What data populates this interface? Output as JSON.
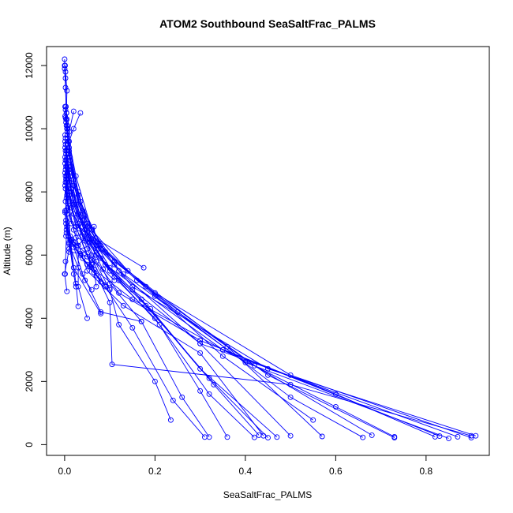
{
  "chart_data": {
    "type": "line",
    "title": "ATOM2 Southbound SeaSaltFrac_PALMS",
    "xlabel": "SeaSaltFrac_PALMS",
    "ylabel": "Altitude (m)",
    "xlim": [
      -0.04,
      0.94
    ],
    "ylim": [
      -340,
      12600
    ],
    "x_ticks": [
      0.0,
      0.2,
      0.4,
      0.6,
      0.8
    ],
    "x_tick_labels": [
      "0.0",
      "0.2",
      "0.4",
      "0.6",
      "0.8"
    ],
    "y_ticks": [
      0,
      2000,
      4000,
      6000,
      8000,
      10000,
      12000
    ],
    "y_tick_labels": [
      "0",
      "2000",
      "4000",
      "6000",
      "8000",
      "10000",
      "12000"
    ],
    "grid": false,
    "legend": "none",
    "series_color": "#0000ff",
    "marker": "open-circle",
    "profiles": [
      [
        [
          0.0,
          12200
        ],
        [
          0.0,
          12000
        ],
        [
          0.002,
          11800
        ],
        [
          0.005,
          11200
        ],
        [
          0.004,
          10500
        ],
        [
          0.006,
          10100
        ],
        [
          0.01,
          9400
        ],
        [
          0.02,
          8200
        ],
        [
          0.05,
          6900
        ],
        [
          0.12,
          5500
        ],
        [
          0.3,
          3200
        ],
        [
          0.87,
          250
        ]
      ],
      [
        [
          0.001,
          12000
        ],
        [
          0.002,
          11600
        ],
        [
          0.003,
          10700
        ],
        [
          0.005,
          10300
        ],
        [
          0.008,
          9600
        ],
        [
          0.03,
          8000
        ],
        [
          0.06,
          6500
        ],
        [
          0.15,
          5000
        ],
        [
          0.45,
          2400
        ],
        [
          0.91,
          280
        ]
      ],
      [
        [
          0.0,
          11900
        ],
        [
          0.002,
          11300
        ],
        [
          0.004,
          10500
        ],
        [
          0.007,
          10000
        ],
        [
          0.01,
          9200
        ],
        [
          0.03,
          7600
        ],
        [
          0.08,
          6200
        ],
        [
          0.2,
          4800
        ],
        [
          0.5,
          2200
        ],
        [
          0.9,
          220
        ]
      ],
      [
        [
          0.001,
          10700
        ],
        [
          0.003,
          10300
        ],
        [
          0.006,
          9800
        ],
        [
          0.015,
          8600
        ],
        [
          0.04,
          7100
        ],
        [
          0.1,
          5600
        ],
        [
          0.35,
          3000
        ],
        [
          0.83,
          270
        ]
      ],
      [
        [
          0.002,
          10600
        ],
        [
          0.004,
          10100
        ],
        [
          0.008,
          9500
        ],
        [
          0.02,
          8400
        ],
        [
          0.05,
          6700
        ],
        [
          0.13,
          5400
        ],
        [
          0.4,
          2600
        ],
        [
          0.85,
          200
        ]
      ],
      [
        [
          0.001,
          10400
        ],
        [
          0.005,
          10000
        ],
        [
          0.01,
          9300
        ],
        [
          0.03,
          7900
        ],
        [
          0.07,
          6400
        ],
        [
          0.16,
          5200
        ],
        [
          0.45,
          2200
        ],
        [
          0.73,
          220
        ]
      ],
      [
        [
          0.002,
          10350
        ],
        [
          0.006,
          9900
        ],
        [
          0.012,
          9000
        ],
        [
          0.04,
          7400
        ],
        [
          0.09,
          6100
        ],
        [
          0.2,
          4700
        ],
        [
          0.42,
          2500
        ],
        [
          0.68,
          300
        ]
      ],
      [
        [
          0.003,
          10200
        ],
        [
          0.007,
          9700
        ],
        [
          0.015,
          8800
        ],
        [
          0.05,
          7000
        ],
        [
          0.11,
          5800
        ],
        [
          0.25,
          4200
        ],
        [
          0.5,
          1500
        ],
        [
          0.66,
          230
        ]
      ],
      [
        [
          0.035,
          10500
        ],
        [
          0.02,
          10000
        ],
        [
          0.01,
          9600
        ],
        [
          0.025,
          8500
        ],
        [
          0.06,
          6800
        ],
        [
          0.14,
          5500
        ],
        [
          0.36,
          3100
        ],
        [
          0.57,
          260
        ]
      ],
      [
        [
          0.02,
          10550
        ],
        [
          0.01,
          9900
        ],
        [
          0.012,
          9100
        ],
        [
          0.035,
          7700
        ],
        [
          0.08,
          6300
        ],
        [
          0.18,
          5000
        ],
        [
          0.35,
          2800
        ],
        [
          0.55,
          780
        ]
      ],
      [
        [
          0.001,
          9800
        ],
        [
          0.004,
          9300
        ],
        [
          0.01,
          8700
        ],
        [
          0.03,
          7300
        ],
        [
          0.07,
          6000
        ],
        [
          0.15,
          4900
        ],
        [
          0.3,
          3200
        ],
        [
          0.5,
          280
        ]
      ],
      [
        [
          0.002,
          9700
        ],
        [
          0.005,
          9100
        ],
        [
          0.012,
          8500
        ],
        [
          0.035,
          7200
        ],
        [
          0.08,
          5900
        ],
        [
          0.17,
          4600
        ],
        [
          0.3,
          2400
        ],
        [
          0.47,
          240
        ]
      ],
      [
        [
          0.001,
          9600
        ],
        [
          0.004,
          9000
        ],
        [
          0.01,
          8300
        ],
        [
          0.04,
          6900
        ],
        [
          0.09,
          5700
        ],
        [
          0.18,
          4400
        ],
        [
          0.32,
          2100
        ],
        [
          0.45,
          220
        ]
      ],
      [
        [
          0.002,
          9500
        ],
        [
          0.006,
          8900
        ],
        [
          0.015,
          8100
        ],
        [
          0.045,
          6800
        ],
        [
          0.1,
          5500
        ],
        [
          0.19,
          4300
        ],
        [
          0.33,
          1900
        ],
        [
          0.43,
          300
        ]
      ],
      [
        [
          0.001,
          9400
        ],
        [
          0.005,
          8800
        ],
        [
          0.014,
          8000
        ],
        [
          0.04,
          6600
        ],
        [
          0.11,
          5300
        ],
        [
          0.2,
          4000
        ],
        [
          0.32,
          1600
        ],
        [
          0.42,
          230
        ]
      ],
      [
        [
          0.002,
          9300
        ],
        [
          0.007,
          8700
        ],
        [
          0.018,
          7800
        ],
        [
          0.05,
          6500
        ],
        [
          0.12,
          5200
        ],
        [
          0.21,
          3800
        ],
        [
          0.3,
          1700
        ],
        [
          0.36,
          240
        ]
      ],
      [
        [
          0.003,
          9200
        ],
        [
          0.006,
          8600
        ],
        [
          0.02,
          7600
        ],
        [
          0.055,
          6400
        ],
        [
          0.1,
          5100
        ],
        [
          0.17,
          3900
        ],
        [
          0.26,
          1500
        ],
        [
          0.32,
          240
        ]
      ],
      [
        [
          0.001,
          9100
        ],
        [
          0.004,
          8500
        ],
        [
          0.015,
          7500
        ],
        [
          0.05,
          6200
        ],
        [
          0.09,
          5000
        ],
        [
          0.15,
          3700
        ],
        [
          0.24,
          1400
        ],
        [
          0.31,
          240
        ]
      ],
      [
        [
          0.002,
          9000
        ],
        [
          0.005,
          8400
        ],
        [
          0.02,
          7300
        ],
        [
          0.06,
          6000
        ],
        [
          0.1,
          4900
        ],
        [
          0.12,
          3800
        ],
        [
          0.2,
          2000
        ],
        [
          0.235,
          780
        ]
      ],
      [
        [
          0.001,
          8900
        ],
        [
          0.004,
          8300
        ],
        [
          0.01,
          7900
        ],
        [
          0.03,
          6700
        ],
        [
          0.06,
          5700
        ],
        [
          0.1,
          4500
        ],
        [
          0.105,
          2540
        ],
        [
          0.5,
          1900
        ],
        [
          0.9,
          280
        ]
      ],
      [
        [
          0.003,
          8800
        ],
        [
          0.008,
          8100
        ],
        [
          0.03,
          7000
        ],
        [
          0.07,
          5800
        ],
        [
          0.12,
          4800
        ],
        [
          0.3,
          3300
        ],
        [
          0.6,
          1600
        ],
        [
          0.82,
          250
        ]
      ],
      [
        [
          0.002,
          8700
        ],
        [
          0.006,
          8000
        ],
        [
          0.025,
          6900
        ],
        [
          0.06,
          5600
        ],
        [
          0.15,
          4600
        ],
        [
          0.35,
          3000
        ],
        [
          0.6,
          1200
        ],
        [
          0.73,
          250
        ]
      ],
      [
        [
          0.001,
          8600
        ],
        [
          0.005,
          7900
        ],
        [
          0.02,
          6800
        ],
        [
          0.05,
          5500
        ],
        [
          0.13,
          4400
        ],
        [
          0.3,
          2900
        ],
        [
          0.44,
          280
        ]
      ],
      [
        [
          0.002,
          8500
        ],
        [
          0.004,
          7800
        ],
        [
          0.015,
          7000
        ],
        [
          0.175,
          5600
        ]
      ],
      [
        [
          0.003,
          8400
        ],
        [
          0.008,
          7700
        ],
        [
          0.012,
          6600
        ],
        [
          0.04,
          5400
        ],
        [
          0.08,
          4200
        ],
        [
          0.17,
          3900
        ]
      ],
      [
        [
          0.002,
          8300
        ],
        [
          0.007,
          7500
        ],
        [
          0.03,
          6300
        ],
        [
          0.03,
          5000
        ],
        [
          0.05,
          4000
        ]
      ],
      [
        [
          0.001,
          8200
        ],
        [
          0.004,
          7400
        ],
        [
          0.008,
          6600
        ],
        [
          0.02,
          5600
        ],
        [
          0.08,
          4150
        ]
      ],
      [
        [
          0.002,
          8100
        ],
        [
          0.005,
          7300
        ],
        [
          0.012,
          6500
        ],
        [
          0.025,
          5100
        ],
        [
          0.03,
          4380
        ]
      ],
      [
        [
          0.001,
          7400
        ],
        [
          0.003,
          7100
        ],
        [
          0.01,
          6400
        ],
        [
          0.02,
          5400
        ],
        [
          0.025,
          5000
        ]
      ],
      [
        [
          0.002,
          7700
        ],
        [
          0.01,
          6200
        ],
        [
          0.0,
          5400
        ],
        [
          0.005,
          4850
        ]
      ],
      [
        [
          0.001,
          7350
        ],
        [
          0.004,
          6700
        ],
        [
          0.002,
          5800
        ],
        [
          0.001,
          5400
        ]
      ],
      [
        [
          0.003,
          7000
        ],
        [
          0.01,
          6350
        ],
        [
          0.03,
          5600
        ],
        [
          0.045,
          5200
        ],
        [
          0.06,
          4900
        ]
      ],
      [
        [
          0.005,
          6900
        ],
        [
          0.02,
          6250
        ],
        [
          0.05,
          5700
        ],
        [
          0.07,
          5350
        ],
        [
          0.09,
          5050
        ]
      ],
      [
        [
          0.004,
          6800
        ],
        [
          0.015,
          6450
        ],
        [
          0.04,
          5900
        ],
        [
          0.065,
          5450
        ],
        [
          0.1,
          4950
        ]
      ],
      [
        [
          0.003,
          6600
        ],
        [
          0.018,
          6350
        ],
        [
          0.035,
          6000
        ],
        [
          0.055,
          5650
        ],
        [
          0.08,
          5150
        ]
      ],
      [
        [
          0.02,
          6400
        ],
        [
          0.04,
          6150
        ],
        [
          0.06,
          5850
        ],
        [
          0.085,
          5550
        ],
        [
          0.11,
          5200
        ]
      ],
      [
        [
          0.015,
          6500
        ],
        [
          0.03,
          6300
        ],
        [
          0.065,
          6900
        ],
        [
          0.07,
          6300
        ],
        [
          0.06,
          5750
        ]
      ],
      [
        [
          0.01,
          6100
        ],
        [
          0.035,
          6050
        ],
        [
          0.05,
          5950
        ],
        [
          0.065,
          5550
        ],
        [
          0.07,
          5000
        ]
      ],
      [
        [
          0.025,
          6550
        ],
        [
          0.045,
          6450
        ],
        [
          0.06,
          6400
        ],
        [
          0.075,
          6200
        ],
        [
          0.11,
          5700
        ]
      ]
    ]
  }
}
